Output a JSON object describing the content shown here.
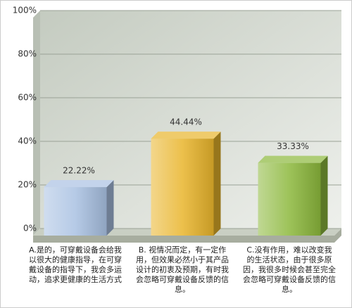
{
  "chart_data": {
    "type": "bar",
    "categories": [
      "A.是的，可穿戴设备会给我以很大的健康指导，在可穿戴设备的指导下，我会多运动，追求更健康的生活方式",
      "B. 视情况而定，有一定作用，但效果必然小于其产品设计的初衷及预期，有时我会忽略可穿戴设备反馈的信息。",
      "C.没有作用，难以改变我的生活状态，由于很多原因，我很多时候会甚至完全会忽略可穿戴设备反馈的信息。"
    ],
    "values": [
      22.22,
      44.44,
      33.33
    ],
    "value_labels": [
      "22.22%",
      "44.44%",
      "33.33%"
    ],
    "colors": [
      "#a9c1e2",
      "#e9b52c",
      "#8cb83c"
    ],
    "ylim": [
      0,
      100
    ],
    "yticks": [
      {
        "value": 0,
        "label": "0%"
      },
      {
        "value": 20,
        "label": "20%"
      },
      {
        "value": 40,
        "label": "40%"
      },
      {
        "value": 60,
        "label": "60%"
      },
      {
        "value": 80,
        "label": "80%"
      },
      {
        "value": 100,
        "label": "100%"
      }
    ],
    "grid": true
  }
}
